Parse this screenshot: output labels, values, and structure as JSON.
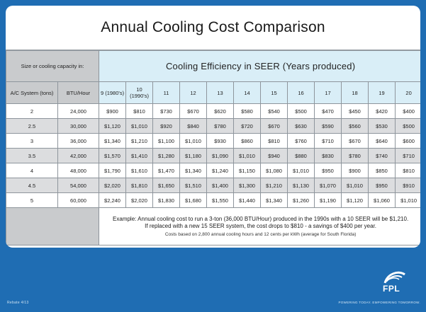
{
  "title": "Annual Cooling Cost Comparison",
  "size_header": "Size or cooling capacity in:",
  "seer_header": "Cooling Efficiency in SEER (Years produced)",
  "col_headers": {
    "ac_system": "A/C System (tons)",
    "btu": "BTU/Hour",
    "seer": [
      "9 (1980's)",
      "10 (1990's)",
      "11",
      "12",
      "13",
      "14",
      "15",
      "16",
      "17",
      "18",
      "19",
      "20"
    ]
  },
  "rows": [
    {
      "tons": "2",
      "btu": "24,000",
      "costs": [
        "$900",
        "$810",
        "$730",
        "$670",
        "$620",
        "$580",
        "$540",
        "$500",
        "$470",
        "$450",
        "$420",
        "$400"
      ]
    },
    {
      "tons": "2.5",
      "btu": "30,000",
      "costs": [
        "$1,120",
        "$1,010",
        "$920",
        "$840",
        "$780",
        "$720",
        "$670",
        "$630",
        "$590",
        "$560",
        "$530",
        "$500"
      ]
    },
    {
      "tons": "3",
      "btu": "36,000",
      "costs": [
        "$1,340",
        "$1,210",
        "$1,100",
        "$1,010",
        "$930",
        "$860",
        "$810",
        "$760",
        "$710",
        "$670",
        "$640",
        "$600"
      ]
    },
    {
      "tons": "3.5",
      "btu": "42,000",
      "costs": [
        "$1,570",
        "$1,410",
        "$1,280",
        "$1,180",
        "$1,090",
        "$1,010",
        "$940",
        "$880",
        "$830",
        "$780",
        "$740",
        "$710"
      ]
    },
    {
      "tons": "4",
      "btu": "48,000",
      "costs": [
        "$1,790",
        "$1,610",
        "$1,470",
        "$1,340",
        "$1,240",
        "$1,150",
        "$1,080",
        "$1,010",
        "$950",
        "$900",
        "$850",
        "$810"
      ]
    },
    {
      "tons": "4.5",
      "btu": "54,000",
      "costs": [
        "$2,020",
        "$1,810",
        "$1,650",
        "$1,510",
        "$1,400",
        "$1,300",
        "$1,210",
        "$1,130",
        "$1,070",
        "$1,010",
        "$950",
        "$910"
      ]
    },
    {
      "tons": "5",
      "btu": "60,000",
      "costs": [
        "$2,240",
        "$2,020",
        "$1,830",
        "$1,680",
        "$1,550",
        "$1,440",
        "$1,340",
        "$1,260",
        "$1,190",
        "$1,120",
        "$1,060",
        "$1,010"
      ]
    }
  ],
  "example": {
    "line1": "Example: Annual cooling cost to run a 3-ton (36,000 BTU/Hour) produced in the 1990s with a 10 SEER will be $1,210.",
    "line2": "If replaced with a new 15 SEER system, the cost drops to $810 - a savings of $400 per year.",
    "line3": "Costs based on 2,800 annual cooling hours  and 12 cents per kWh (average for South Florida)"
  },
  "footer": {
    "form_number": "Rebate 4/13",
    "logo_text": "FPL",
    "logo_icon": "fpl-sun-logo-icon",
    "tagline": "POWERING TODAY. EMPOWERING TOMORROW."
  },
  "colors": {
    "background": "#1f6db3",
    "header_gray": "#c9cbcd",
    "header_light_blue": "#d9eef7",
    "row_gray": "#dcdddf",
    "card": "#ffffff"
  }
}
